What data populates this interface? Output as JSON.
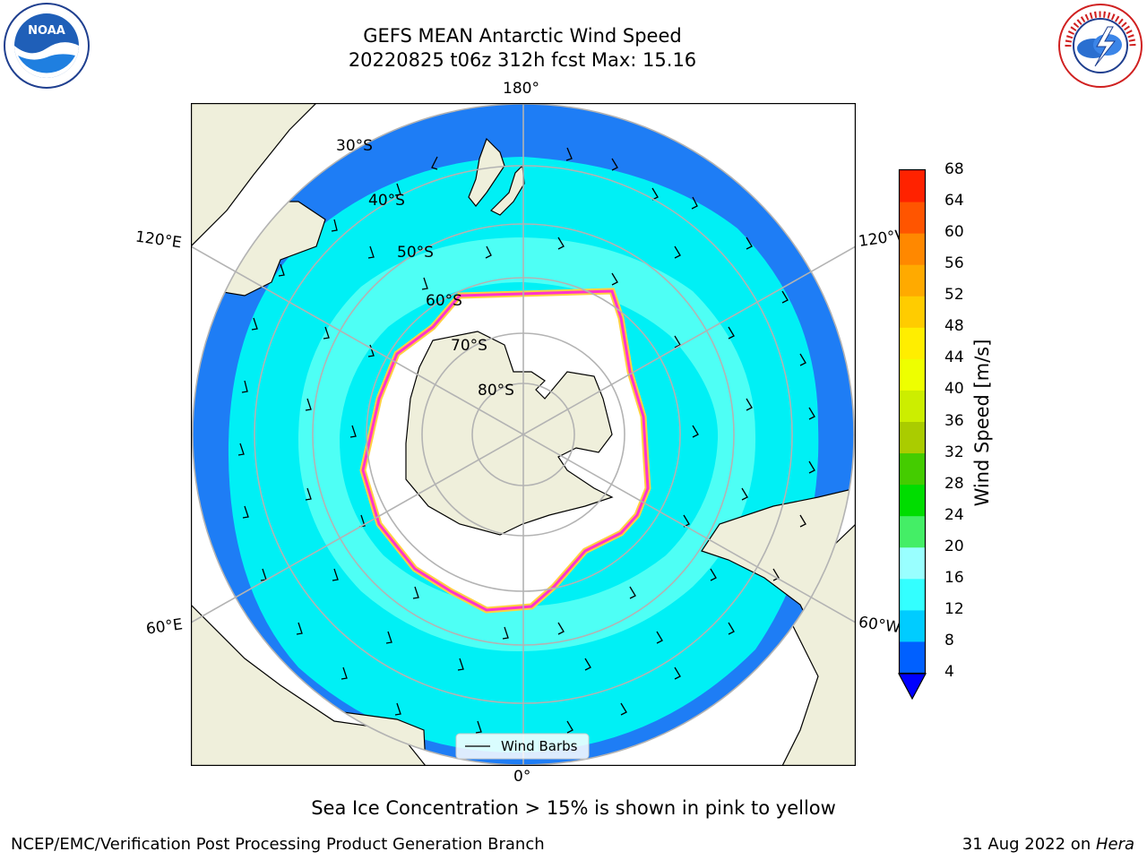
{
  "header": {
    "title_line1": "GEFS MEAN Antarctic Wind Speed",
    "title_line2": "20220825 t06z 312h fcst   Max: 15.16"
  },
  "logos": {
    "left": {
      "icon": "noaa-logo-icon",
      "text": "NOAA"
    },
    "right": {
      "icon": "nws-logo-icon",
      "text": "NATIONAL WEATHER SERVICE"
    }
  },
  "map": {
    "projection": "south-polar-stereographic",
    "longitude_labels": {
      "top": "180°",
      "bottom": "0°",
      "upper_left": "120°E",
      "upper_right": "120°W",
      "lower_left": "60°E",
      "lower_right": "60°W"
    },
    "latitude_labels": [
      "30°S",
      "40°S",
      "50°S",
      "60°S",
      "70°S",
      "80°S"
    ],
    "legend_label": "Wind Barbs",
    "colors": {
      "land": "#efefdb",
      "ice_mask": "#ffffff",
      "ocean_low": "#1e7df5",
      "ocean_mid": "#00f0f5",
      "ocean_high": "#4efff5",
      "ice_edge_pink": "#ff33cc",
      "ice_edge_yellow": "#ffd040"
    }
  },
  "colorbar": {
    "label": "Wind Speed [m/s]",
    "ticks": [
      "4",
      "8",
      "12",
      "16",
      "20",
      "24",
      "28",
      "32",
      "36",
      "40",
      "44",
      "48",
      "52",
      "56",
      "60",
      "64",
      "68"
    ],
    "colors": [
      "#0060ff",
      "#00ccff",
      "#33ffff",
      "#99ffff",
      "#44ee66",
      "#00dd00",
      "#44cc00",
      "#aacc00",
      "#ccee00",
      "#eeff00",
      "#ffee00",
      "#ffcc00",
      "#ffaa00",
      "#ff8800",
      "#ff5500",
      "#ff2200"
    ],
    "under_color": "#0000ff"
  },
  "caption": "Sea Ice Concentration > 15% is shown in pink to yellow",
  "footer": {
    "left": "NCEP/EMC/Verification Post Processing Product Generation Branch",
    "right_date": "31 Aug 2022 on ",
    "right_host": "Hera"
  }
}
